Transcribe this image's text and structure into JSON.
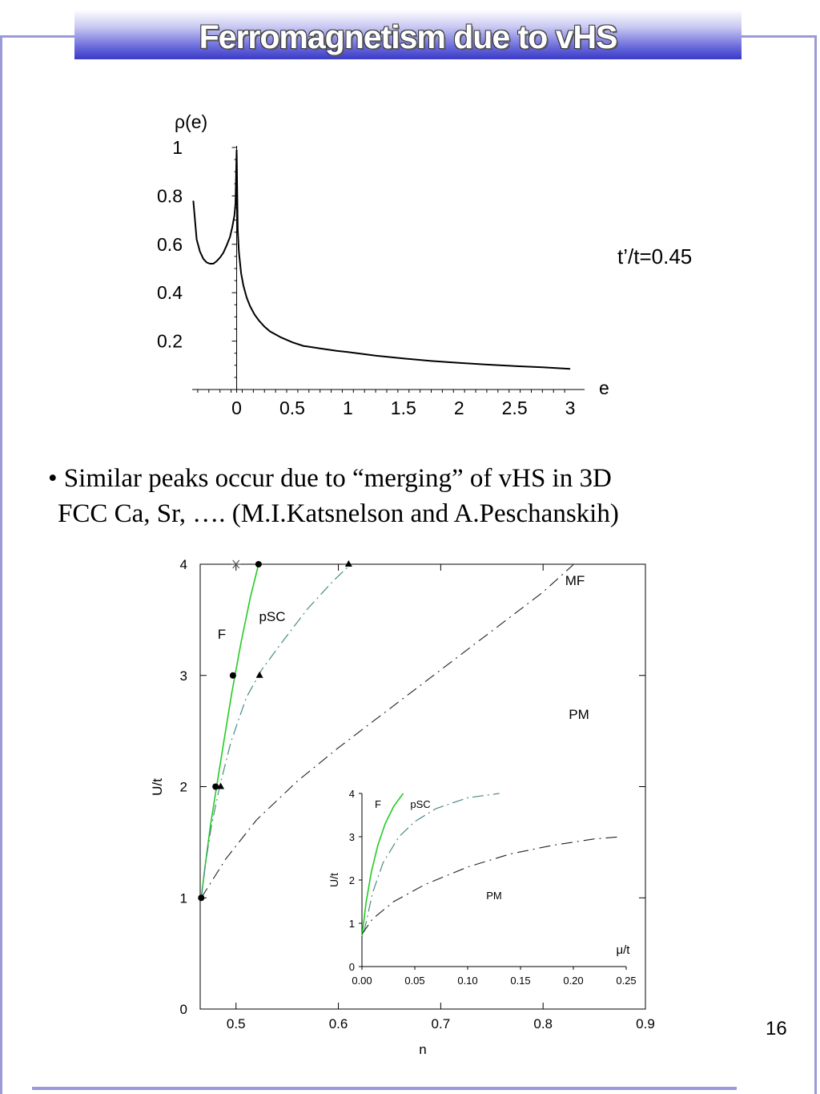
{
  "slide": {
    "title": "Ferromagnetism due to vHS",
    "param_label": "t’/t=0.45",
    "bullet_line1": "• Similar peaks occur due to “merging” of vHS in 3D",
    "bullet_line2": "FCC Ca, Sr, ….  (M.I.Katsnelson and A.Peschanskih)",
    "page_number": "16"
  },
  "chart_data": [
    {
      "type": "line",
      "ylabel": "ρ(e)",
      "xlabel": "e",
      "xlim": [
        -0.4,
        3.05
      ],
      "ylim": [
        0,
        1
      ],
      "x_ticks": [
        0,
        0.5,
        1,
        1.5,
        2,
        2.5,
        3
      ],
      "y_ticks": [
        0.2,
        0.4,
        0.6,
        0.8,
        1
      ],
      "x_tick_labels": [
        "0",
        "0.5",
        "1",
        "1.5",
        "2",
        "2.5",
        "3"
      ],
      "y_tick_labels": [
        "0.2",
        "0.4",
        "0.6",
        "0.8",
        "1"
      ],
      "series": [
        {
          "x": [
            -0.39,
            -0.36,
            -0.33,
            -0.3,
            -0.27,
            -0.24,
            -0.21,
            -0.18,
            -0.15,
            -0.12,
            -0.09,
            -0.06,
            -0.04,
            -0.02,
            -0.01,
            0.0,
            0.01,
            0.02,
            0.04,
            0.06,
            0.09,
            0.12,
            0.16,
            0.2,
            0.25,
            0.3,
            0.4,
            0.5,
            0.6,
            0.75,
            0.9,
            1.0,
            1.25,
            1.5,
            1.75,
            2.0,
            2.25,
            2.5,
            2.75,
            3.0
          ],
          "values": [
            0.78,
            0.62,
            0.57,
            0.54,
            0.525,
            0.52,
            0.52,
            0.53,
            0.545,
            0.565,
            0.595,
            0.63,
            0.67,
            0.72,
            0.77,
            0.99,
            0.66,
            0.57,
            0.48,
            0.43,
            0.38,
            0.345,
            0.31,
            0.285,
            0.26,
            0.24,
            0.215,
            0.195,
            0.18,
            0.17,
            0.16,
            0.155,
            0.14,
            0.128,
            0.118,
            0.11,
            0.103,
            0.097,
            0.092,
            0.085
          ]
        }
      ]
    },
    {
      "type": "line",
      "xlabel": "n",
      "ylabel": "U/t",
      "xlim": [
        0.465,
        0.9
      ],
      "ylim": [
        0,
        4
      ],
      "x_ticks": [
        0.5,
        0.6,
        0.7,
        0.8,
        0.9
      ],
      "y_ticks": [
        0,
        1,
        2,
        3,
        4
      ],
      "x_tick_labels": [
        "0.5",
        "0.6",
        "0.7",
        "0.8",
        "0.9"
      ],
      "y_tick_labels": [
        "0",
        "1",
        "2",
        "3",
        "4"
      ],
      "annotations": [
        "F",
        "pSC",
        "MF",
        "PM"
      ],
      "series": [
        {
          "name": "F",
          "color": "#22cc22",
          "x": [
            0.466,
            0.47,
            0.475,
            0.481,
            0.488,
            0.496,
            0.505,
            0.514,
            0.522
          ],
          "values": [
            1.0,
            1.3,
            1.65,
            2.0,
            2.4,
            2.85,
            3.3,
            3.7,
            4.0
          ]
        },
        {
          "name": "pSC",
          "color": "#4a8a86",
          "x": [
            0.466,
            0.47,
            0.476,
            0.484,
            0.495,
            0.51,
            0.525,
            0.545,
            0.57,
            0.595,
            0.612
          ],
          "values": [
            1.0,
            1.3,
            1.65,
            2.0,
            2.4,
            2.8,
            3.05,
            3.3,
            3.6,
            3.85,
            4.0
          ]
        },
        {
          "name": "MF",
          "color": "#222222",
          "x": [
            0.466,
            0.49,
            0.52,
            0.56,
            0.6,
            0.65,
            0.7,
            0.75,
            0.8,
            0.83
          ],
          "values": [
            1.0,
            1.35,
            1.7,
            2.05,
            2.35,
            2.7,
            3.05,
            3.4,
            3.75,
            4.0
          ]
        }
      ],
      "markers": {
        "circles": {
          "x": [
            0.466,
            0.48,
            0.497,
            0.522
          ],
          "values": [
            1.0,
            2.0,
            3.0,
            4.0
          ]
        },
        "triangles": {
          "x": [
            0.485,
            0.523,
            0.61
          ],
          "values": [
            2.0,
            3.0,
            4.0
          ]
        },
        "star": {
          "x": [
            0.5
          ],
          "values": [
            4.0
          ]
        }
      }
    },
    {
      "type": "line",
      "xlabel": "μ/t",
      "ylabel": "U/t",
      "xlim": [
        0,
        0.25
      ],
      "ylim": [
        0,
        4
      ],
      "x_ticks": [
        0,
        0.05,
        0.1,
        0.15,
        0.2,
        0.25
      ],
      "y_ticks": [
        0,
        1,
        2,
        3,
        4
      ],
      "x_tick_labels": [
        "0.00",
        "0.05",
        "0.10",
        "0.15",
        "0.20",
        "0.25"
      ],
      "y_tick_labels": [
        "0",
        "1",
        "2",
        "3",
        "4"
      ],
      "annotations": [
        "F",
        "pSC",
        "PM"
      ],
      "series": [
        {
          "name": "F",
          "color": "#22cc22",
          "x": [
            0.0,
            0.004,
            0.009,
            0.015,
            0.022,
            0.03,
            0.039
          ],
          "values": [
            0.7,
            1.5,
            2.2,
            2.8,
            3.3,
            3.7,
            4.0
          ]
        },
        {
          "name": "pSC",
          "color": "#4a8a86",
          "x": [
            0.002,
            0.01,
            0.02,
            0.035,
            0.05,
            0.07,
            0.1,
            0.13
          ],
          "values": [
            0.8,
            1.7,
            2.4,
            3.0,
            3.35,
            3.65,
            3.9,
            4.0
          ]
        },
        {
          "name": "PM",
          "color": "#222222",
          "x": [
            0.0,
            0.01,
            0.03,
            0.06,
            0.1,
            0.14,
            0.18,
            0.22,
            0.245
          ],
          "values": [
            0.75,
            1.1,
            1.5,
            1.9,
            2.3,
            2.6,
            2.8,
            2.95,
            3.0
          ]
        }
      ]
    }
  ]
}
